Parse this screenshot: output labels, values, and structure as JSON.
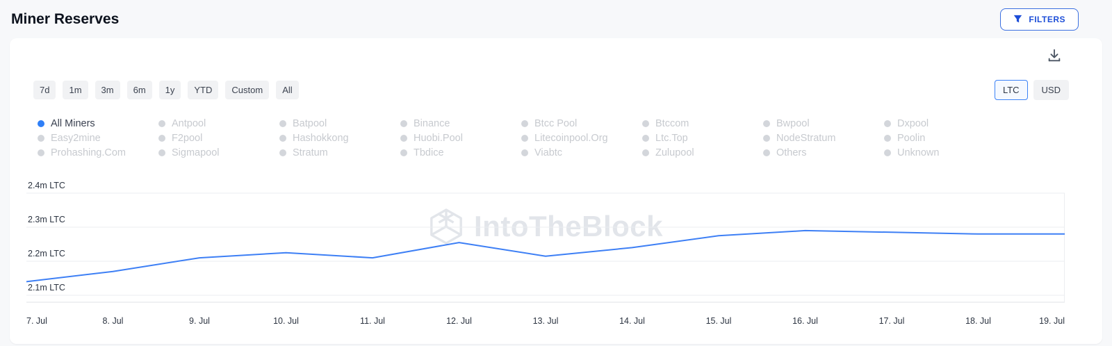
{
  "header": {
    "title": "Miner Reserves",
    "filters_button": "FILTERS"
  },
  "toolbar": {
    "ranges": [
      "7d",
      "1m",
      "3m",
      "6m",
      "1y",
      "YTD",
      "Custom",
      "All"
    ],
    "units": [
      "LTC",
      "USD"
    ],
    "selected_unit": "LTC"
  },
  "legend": {
    "items": [
      {
        "label": "All Miners",
        "active": true
      },
      {
        "label": "Antpool",
        "active": false
      },
      {
        "label": "Batpool",
        "active": false
      },
      {
        "label": "Binance",
        "active": false
      },
      {
        "label": "Btcc Pool",
        "active": false
      },
      {
        "label": "Btccom",
        "active": false
      },
      {
        "label": "Bwpool",
        "active": false
      },
      {
        "label": "Dxpool",
        "active": false
      },
      {
        "label": "Easy2mine",
        "active": false
      },
      {
        "label": "F2pool",
        "active": false
      },
      {
        "label": "Hashokkong",
        "active": false
      },
      {
        "label": "Huobi.Pool",
        "active": false
      },
      {
        "label": "Litecoinpool.Org",
        "active": false
      },
      {
        "label": "Ltc.Top",
        "active": false
      },
      {
        "label": "NodeStratum",
        "active": false
      },
      {
        "label": "Poolin",
        "active": false
      },
      {
        "label": "Prohashing.Com",
        "active": false
      },
      {
        "label": "Sigmapool",
        "active": false
      },
      {
        "label": "Stratum",
        "active": false
      },
      {
        "label": "Tbdice",
        "active": false
      },
      {
        "label": "Viabtc",
        "active": false
      },
      {
        "label": "Zulupool",
        "active": false
      },
      {
        "label": "Others",
        "active": false
      },
      {
        "label": "Unknown",
        "active": false
      }
    ]
  },
  "watermark": "IntoTheBlock",
  "chart_data": {
    "type": "line",
    "title": "Miner Reserves",
    "unit": "LTC",
    "x": [
      "7. Jul",
      "8. Jul",
      "9. Jul",
      "10. Jul",
      "11. Jul",
      "12. Jul",
      "13. Jul",
      "14. Jul",
      "15. Jul",
      "16. Jul",
      "17. Jul",
      "18. Jul",
      "19. Jul"
    ],
    "series": [
      {
        "name": "All Miners",
        "color": "#3d7ff5",
        "values": [
          2.14,
          2.17,
          2.21,
          2.225,
          2.21,
          2.255,
          2.215,
          2.24,
          2.275,
          2.29,
          2.285,
          2.28,
          2.28
        ]
      }
    ],
    "yticks": {
      "values": [
        2.1,
        2.2,
        2.3,
        2.4
      ],
      "labels": [
        "2.1m LTC",
        "2.2m LTC",
        "2.3m LTC",
        "2.4m LTC"
      ]
    },
    "ylim": [
      2.1,
      2.4
    ],
    "grid": "horizontal",
    "legend_position": "top"
  }
}
